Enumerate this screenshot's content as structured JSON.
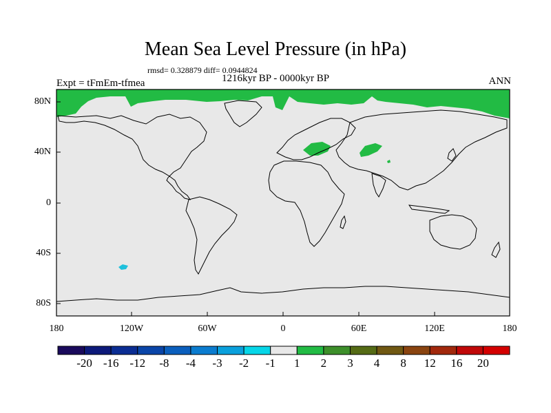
{
  "title": "Mean Sea Level Pressure (in hPa)",
  "stats": "rmsd= 0.328879  diff= 0.0944824",
  "period": "1216kyr BP - 0000kyr BP",
  "experiment": "Expt = tFmEm-tfmea",
  "season": "ANN",
  "latitude_labels": [
    "80N",
    "40N",
    "0",
    "40S",
    "80S"
  ],
  "longitude_labels": [
    "180",
    "120W",
    "60W",
    "0",
    "60E",
    "120E",
    "180"
  ],
  "colorbar": {
    "labels": [
      "-20",
      "-16",
      "-12",
      "-8",
      "-4",
      "-3",
      "-2",
      "-1",
      "1",
      "2",
      "3",
      "4",
      "8",
      "12",
      "16",
      "20"
    ],
    "colors": [
      "#1a0a5c",
      "#0d1a7a",
      "#0b2d93",
      "#0a45a8",
      "#0b5fbd",
      "#0b7ccf",
      "#0aa0dc",
      "#06d6e8",
      "#e8e8e8",
      "#22bb44",
      "#3d8f2a",
      "#556b15",
      "#705812",
      "#8a4410",
      "#a2280c",
      "#c00808",
      "#d40000"
    ]
  },
  "map_colors": {
    "neutral": "#e8e8e8",
    "positive": "#22bb44",
    "negative": "#1ec0dc",
    "coast": "#000000"
  }
}
